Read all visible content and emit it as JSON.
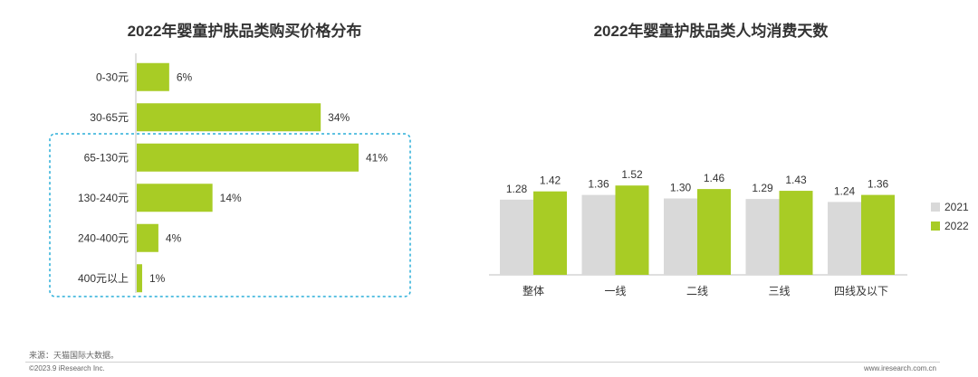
{
  "colors": {
    "green": "#a8cc25",
    "gray": "#d9d9d9",
    "highlight_border": "#2aaed8",
    "axis": "#bfbfbf"
  },
  "chart_data": [
    {
      "type": "bar",
      "orientation": "horizontal",
      "title": "2022年婴童护肤品类购买价格分布",
      "categories": [
        "0-30元",
        "30-65元",
        "65-130元",
        "130-240元",
        "240-400元",
        "400元以上"
      ],
      "values": [
        6,
        34,
        41,
        14,
        4,
        1
      ],
      "value_labels": [
        "6%",
        "34%",
        "41%",
        "14%",
        "4%",
        "1%"
      ],
      "unit": "%",
      "highlighted_categories": [
        "65-130元",
        "130-240元",
        "240-400元",
        "400元以上"
      ]
    },
    {
      "type": "bar",
      "title": "2022年婴童护肤品类人均消费天数",
      "categories": [
        "整体",
        "一线",
        "二线",
        "三线",
        "四线及以下"
      ],
      "series": [
        {
          "name": "2021",
          "values": [
            1.28,
            1.36,
            1.3,
            1.29,
            1.24
          ],
          "labels": [
            "1.28",
            "1.36",
            "1.30",
            "1.29",
            "1.24"
          ],
          "color": "#d9d9d9"
        },
        {
          "name": "2022",
          "values": [
            1.42,
            1.52,
            1.46,
            1.43,
            1.36
          ],
          "labels": [
            "1.42",
            "1.52",
            "1.46",
            "1.43",
            "1.36"
          ],
          "color": "#a8cc25"
        }
      ],
      "legend_position": "right",
      "ylim": [
        0,
        1.6
      ]
    }
  ],
  "footer": {
    "source": "来源：天猫国际大数据。",
    "copyright": "©2023.9 iResearch Inc.",
    "url": "www.iresearch.com.cn"
  }
}
